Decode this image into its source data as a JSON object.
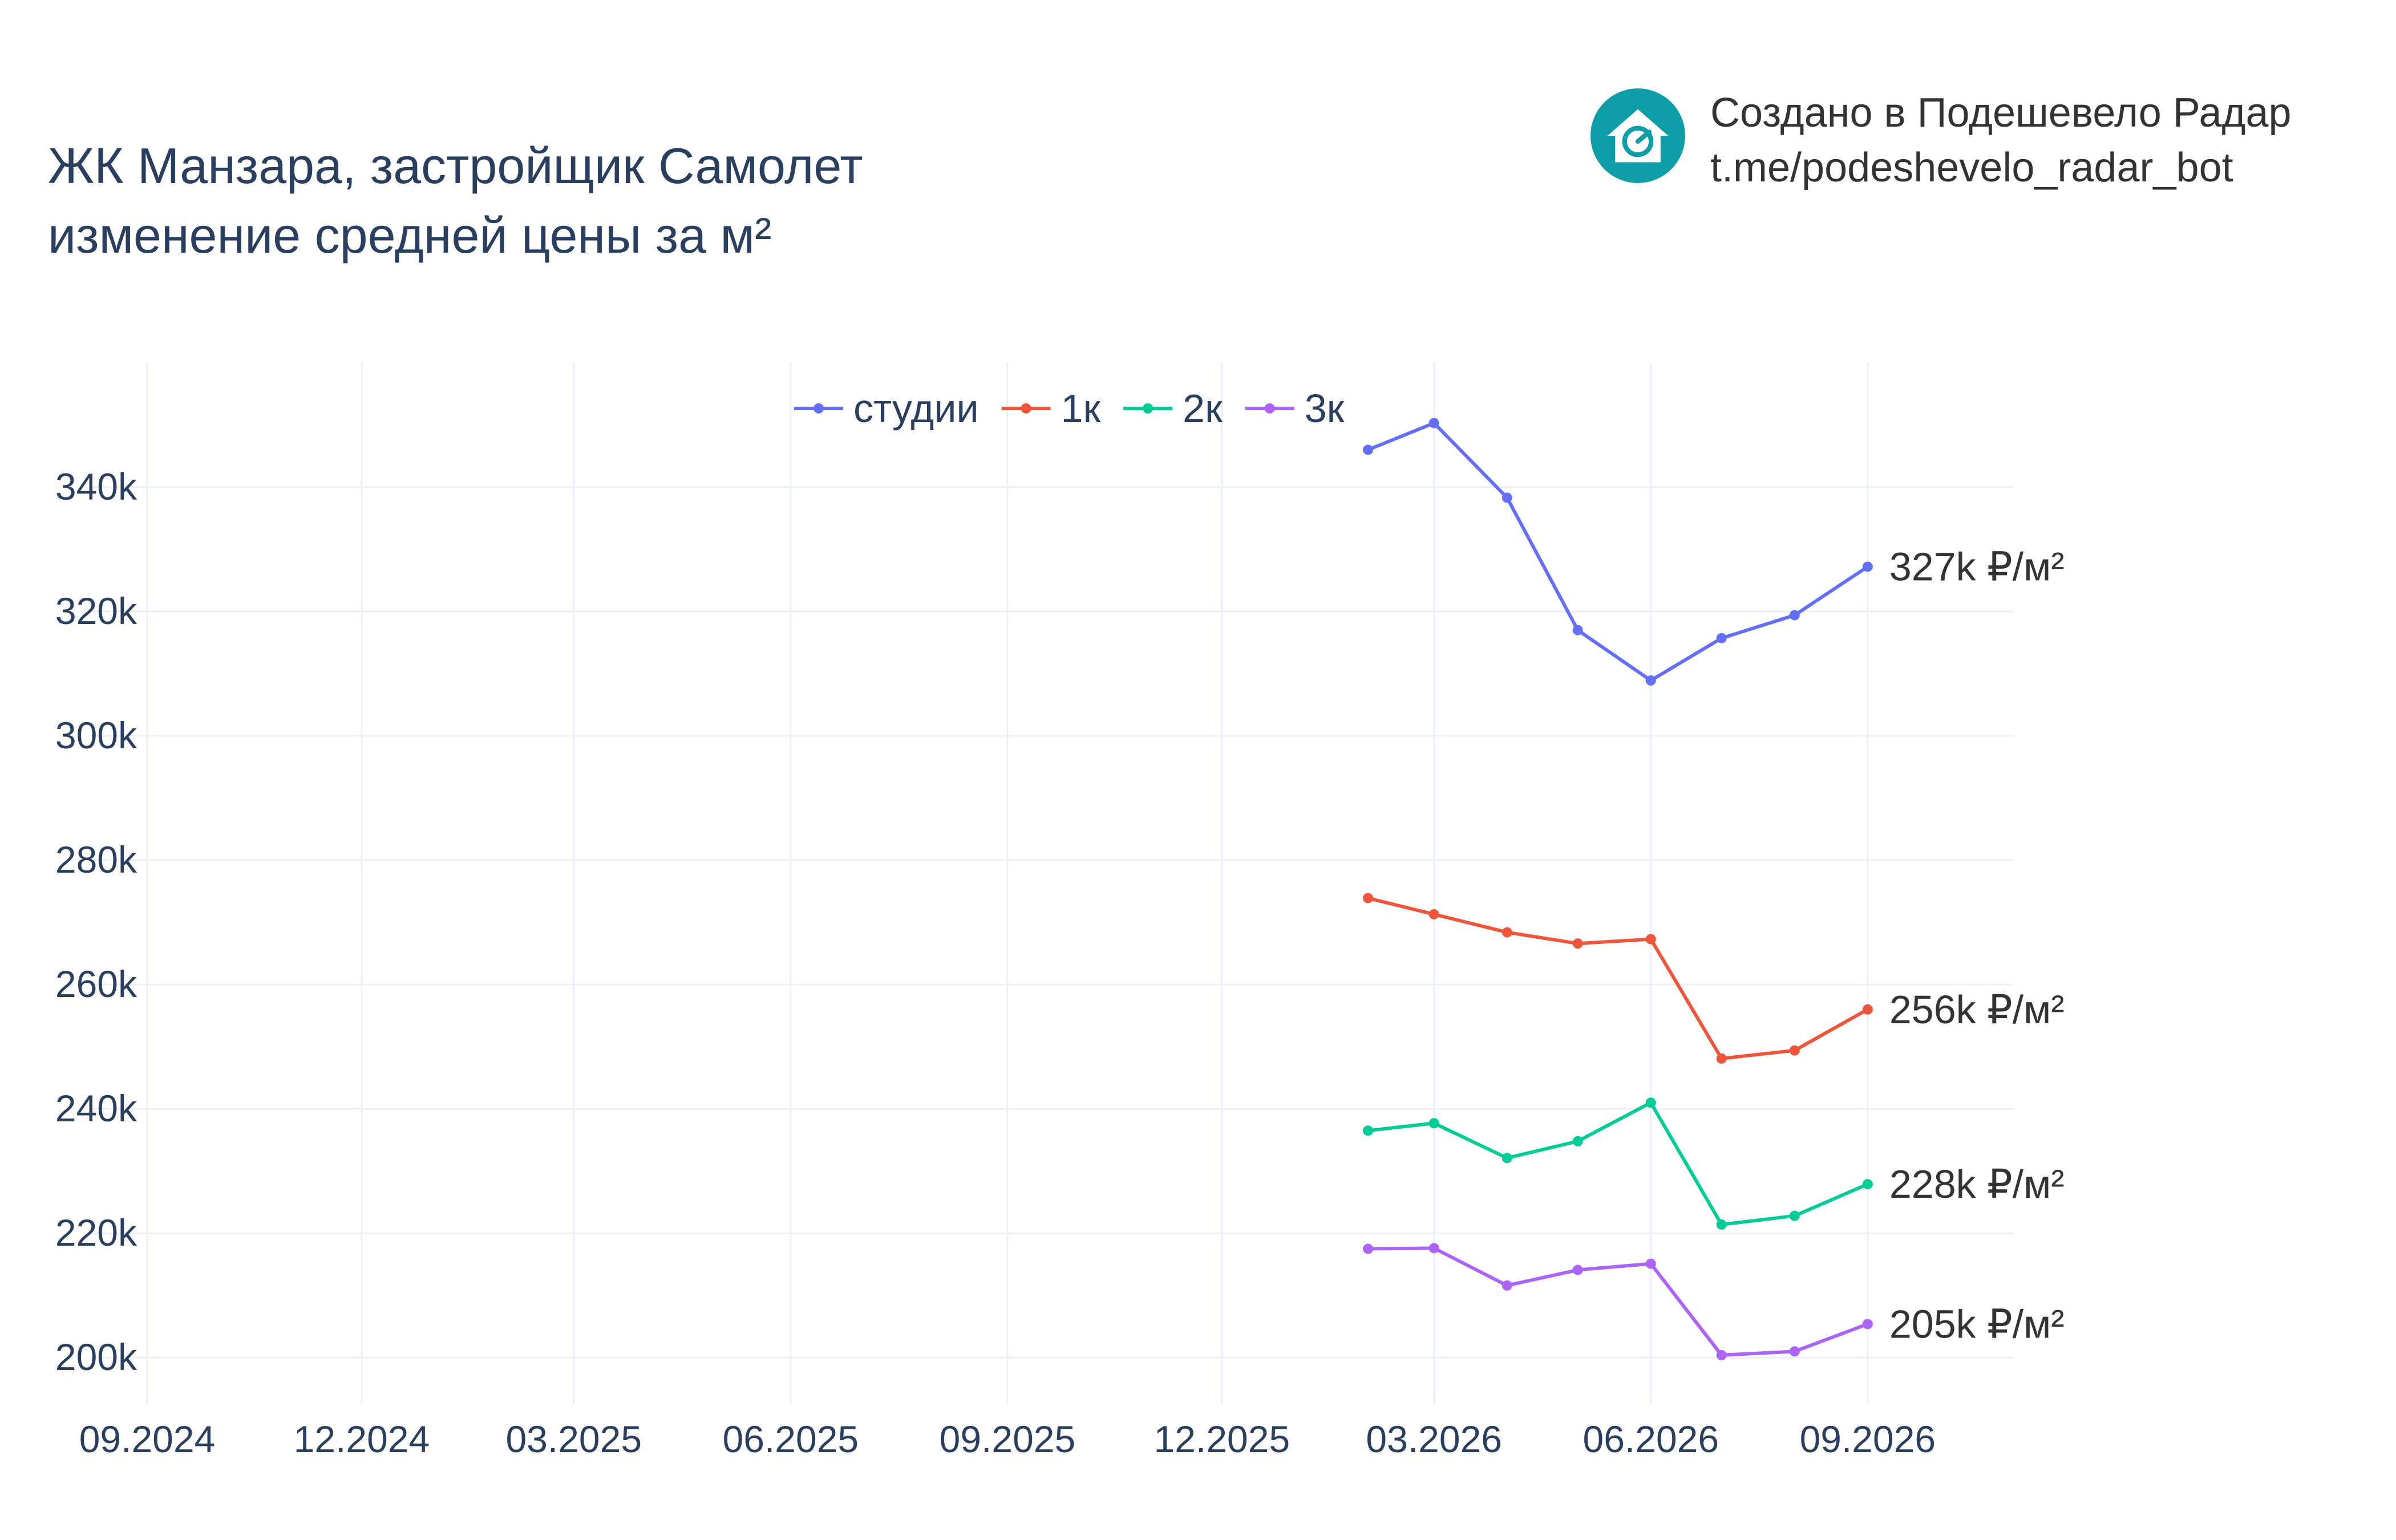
{
  "brand": {
    "line1": "Создано в Подешевело Радар",
    "line2": "t.me/podeshevelo_radar_bot",
    "logo_icon": "house-radar-icon",
    "logo_color": "#0e9ea8"
  },
  "chart_data": {
    "type": "line",
    "title": "ЖК Манзара, застройщик Самолет",
    "subtitle": "изменение средней цены за м²",
    "xlabel": "",
    "ylabel": "",
    "x_ticks": [
      "09.2024",
      "12.2024",
      "03.2025",
      "06.2025",
      "09.2025",
      "12.2025",
      "03.2026",
      "06.2026",
      "09.2026"
    ],
    "x_range": [
      "2024-09-01",
      "2026-11-02"
    ],
    "y_ticks": [
      200000,
      220000,
      240000,
      260000,
      280000,
      300000,
      320000,
      340000
    ],
    "y_tick_labels": [
      "200k",
      "220k",
      "240k",
      "260k",
      "280k",
      "300k",
      "320k",
      "340k"
    ],
    "y_range": [
      192500,
      360000
    ],
    "grid": true,
    "legend_position": "top-center",
    "x": [
      "2026-02-01",
      "2026-03-01",
      "2026-04-01",
      "2026-05-01",
      "2026-06-01",
      "2026-07-01",
      "2026-08-01",
      "2026-09-01"
    ],
    "series": [
      {
        "name": "студии",
        "color": "#636efa",
        "values": [
          346000,
          350300,
          338300,
          317000,
          308900,
          315700,
          319400,
          327200
        ],
        "end_label": "327k ₽/м²"
      },
      {
        "name": "1к",
        "color": "#ef553b",
        "values": [
          273900,
          271300,
          268400,
          266600,
          267300,
          248100,
          249400,
          256000
        ],
        "end_label": "256k ₽/м²"
      },
      {
        "name": "2к",
        "color": "#00cc96",
        "values": [
          236500,
          237700,
          232100,
          234800,
          241000,
          221400,
          222800,
          227900
        ],
        "end_label": "228k ₽/м²"
      },
      {
        "name": "3к",
        "color": "#ab63fa",
        "values": [
          217500,
          217600,
          211600,
          214100,
          215100,
          200400,
          201000,
          205400
        ],
        "end_label": "205k ₽/м²"
      }
    ]
  }
}
